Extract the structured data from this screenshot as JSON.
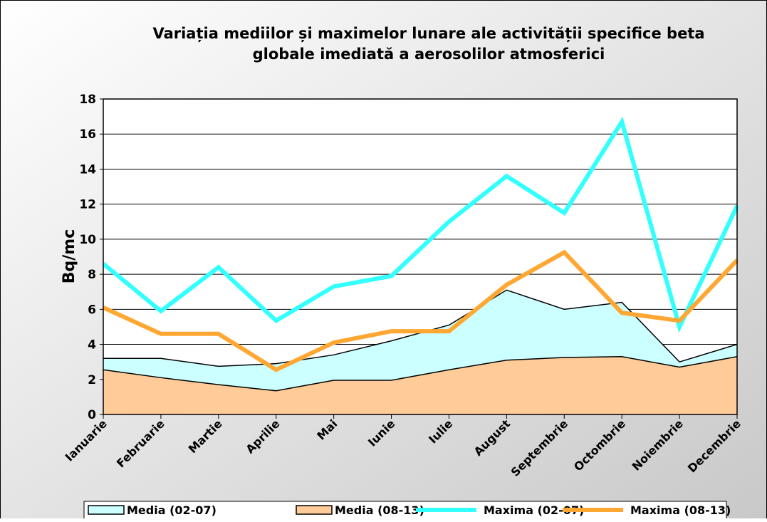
{
  "chart_data": {
    "type": "line",
    "title": [
      "Variația mediilor și maximelor lunare ale activității specifice beta",
      "globale imediată a aerosolilor atmosferici"
    ],
    "y_label": "Bq/mc",
    "categories": [
      "Ianuarie",
      "Februarie",
      "Martie",
      "Aprilie",
      "Mai",
      "Iunie",
      "Iulie",
      "August",
      "Septembrie",
      "Octombrie",
      "Noiembrie",
      "Decembrie"
    ],
    "series": [
      {
        "name": "Media (02-07)",
        "type": "area",
        "color": "#ccffff",
        "values": [
          3.2,
          3.2,
          2.75,
          2.9,
          3.4,
          4.2,
          5.1,
          7.1,
          6.0,
          6.4,
          3.0,
          4.0
        ]
      },
      {
        "name": "Media (08-13)",
        "type": "area",
        "color": "#ffcc99",
        "values": [
          2.55,
          2.1,
          1.7,
          1.35,
          1.95,
          1.95,
          2.55,
          3.1,
          3.25,
          3.3,
          2.7,
          3.3
        ]
      },
      {
        "name": "Maxima (02-07)",
        "type": "line",
        "color": "#33ffff",
        "values": [
          8.6,
          5.9,
          8.4,
          5.35,
          7.3,
          7.9,
          11.0,
          13.6,
          11.5,
          16.7,
          5.0,
          11.9
        ]
      },
      {
        "name": "Maxima (08-13)",
        "type": "line",
        "color": "#ffa733",
        "values": [
          6.1,
          4.6,
          4.6,
          2.55,
          4.1,
          4.75,
          4.75,
          7.4,
          9.25,
          5.8,
          5.35,
          8.8
        ]
      }
    ],
    "ylim": [
      0,
      18
    ],
    "yticks": [
      0,
      2,
      4,
      6,
      8,
      10,
      12,
      14,
      16,
      18
    ],
    "grid": true
  }
}
